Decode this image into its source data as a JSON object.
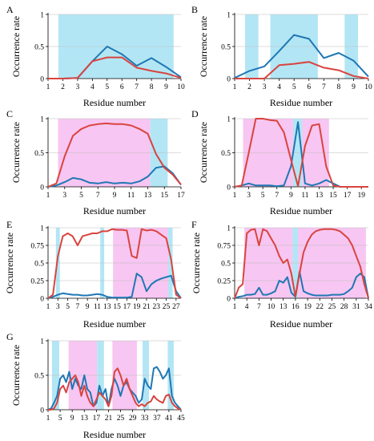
{
  "colors": {
    "cyan": "#b3e6f5",
    "magenta": "#f7c6f2",
    "blue": "#1f77b4",
    "red": "#d9443f"
  },
  "chart_data": [
    {
      "panel": "A",
      "type": "line",
      "xlabel": "Residue number",
      "ylabel": "Occurrence rate",
      "xlim": [
        1,
        10
      ],
      "ylim": [
        0,
        1
      ],
      "xticks": [
        1,
        2,
        3,
        4,
        5,
        6,
        7,
        8,
        9,
        10
      ],
      "xtick_labels": [
        "1",
        "2",
        "3",
        "4",
        "5",
        "6",
        "7",
        "8",
        "9",
        "10"
      ],
      "yticks": [
        0,
        0.5,
        1
      ],
      "ytick_labels": [
        "0",
        "0.5",
        "1"
      ],
      "regions": [
        {
          "from": 1.7,
          "to": 9.5,
          "color": "cyan"
        }
      ],
      "series": [
        {
          "color": "blue",
          "x": [
            1,
            2,
            3,
            4,
            5,
            6,
            7,
            8,
            9,
            10
          ],
          "y": [
            0,
            0,
            0.01,
            0.27,
            0.5,
            0.38,
            0.2,
            0.32,
            0.18,
            0.02
          ]
        },
        {
          "color": "red",
          "x": [
            1,
            2,
            3,
            4,
            5,
            6,
            7,
            8,
            9,
            10
          ],
          "y": [
            0,
            0,
            0.01,
            0.27,
            0.33,
            0.33,
            0.17,
            0.12,
            0.08,
            0.01
          ]
        }
      ]
    },
    {
      "panel": "B",
      "type": "line",
      "xlabel": "Residue number",
      "ylabel": "Occurrence rate",
      "xlim": [
        1,
        10
      ],
      "ylim": [
        0,
        1
      ],
      "xticks": [
        1,
        2,
        3,
        4,
        5,
        6,
        7,
        8,
        9,
        10
      ],
      "xtick_labels": [
        "1",
        "2",
        "3",
        "4",
        "5",
        "6",
        "7",
        "8",
        "9",
        "10"
      ],
      "yticks": [
        0,
        0.5,
        1
      ],
      "ytick_labels": [
        "0",
        "0.5",
        "1"
      ],
      "regions": [
        {
          "from": 1.7,
          "to": 2.6,
          "color": "cyan"
        },
        {
          "from": 3.4,
          "to": 6.6,
          "color": "cyan"
        },
        {
          "from": 8.4,
          "to": 9.3,
          "color": "cyan"
        }
      ],
      "series": [
        {
          "color": "blue",
          "x": [
            1,
            2,
            3,
            4,
            5,
            6,
            7,
            8,
            9,
            10
          ],
          "y": [
            0.01,
            0.12,
            0.19,
            0.43,
            0.68,
            0.62,
            0.32,
            0.4,
            0.28,
            0.03
          ]
        },
        {
          "color": "red",
          "x": [
            1,
            2,
            3,
            4,
            5,
            6,
            7,
            8,
            9,
            10
          ],
          "y": [
            0,
            0,
            0,
            0.21,
            0.23,
            0.26,
            0.17,
            0.13,
            0.04,
            0
          ]
        }
      ]
    },
    {
      "panel": "C",
      "type": "line",
      "xlabel": "Residue number",
      "ylabel": "Occurrence rate",
      "xlim": [
        1,
        17
      ],
      "ylim": [
        0,
        1
      ],
      "xticks": [
        1,
        3,
        5,
        7,
        9,
        11,
        13,
        15,
        17
      ],
      "xtick_labels": [
        "1",
        "3",
        "5",
        "7",
        "9",
        "11",
        "13",
        "15",
        "17"
      ],
      "yticks": [
        0,
        0.5,
        1
      ],
      "ytick_labels": [
        "0",
        "0.5",
        "1"
      ],
      "regions": [
        {
          "from": 2.2,
          "to": 13.3,
          "color": "magenta"
        },
        {
          "from": 13.3,
          "to": 15.4,
          "color": "cyan"
        }
      ],
      "series": [
        {
          "color": "blue",
          "x": [
            1,
            2,
            3,
            4,
            5,
            6,
            7,
            8,
            9,
            10,
            11,
            12,
            13,
            14,
            15,
            16,
            17
          ],
          "y": [
            0,
            0.02,
            0.07,
            0.13,
            0.11,
            0.06,
            0.05,
            0.07,
            0.05,
            0.06,
            0.05,
            0.08,
            0.15,
            0.28,
            0.3,
            0.2,
            0.03
          ]
        },
        {
          "color": "red",
          "x": [
            1,
            2,
            3,
            4,
            5,
            6,
            7,
            8,
            9,
            10,
            11,
            12,
            13,
            14,
            15,
            16,
            17
          ],
          "y": [
            0,
            0.05,
            0.45,
            0.75,
            0.85,
            0.9,
            0.92,
            0.93,
            0.92,
            0.92,
            0.9,
            0.85,
            0.78,
            0.48,
            0.28,
            0.18,
            0.03
          ]
        }
      ]
    },
    {
      "panel": "D",
      "type": "line",
      "xlabel": "Residue number",
      "ylabel": "Occurrence rate",
      "xlim": [
        1,
        20
      ],
      "ylim": [
        0,
        1
      ],
      "xticks": [
        1,
        3,
        5,
        7,
        9,
        11,
        13,
        15,
        17,
        19
      ],
      "xtick_labels": [
        "1",
        "3",
        "5",
        "7",
        "9",
        "11",
        "13",
        "15",
        "17",
        "19"
      ],
      "yticks": [
        0,
        0.5,
        1
      ],
      "ytick_labels": [
        "0",
        "0.5",
        "1"
      ],
      "regions": [
        {
          "from": 2.2,
          "to": 9.3,
          "color": "magenta"
        },
        {
          "from": 9.3,
          "to": 10.6,
          "color": "cyan"
        },
        {
          "from": 10.6,
          "to": 14.4,
          "color": "magenta"
        }
      ],
      "series": [
        {
          "color": "blue",
          "x": [
            1,
            2,
            3,
            4,
            5,
            6,
            7,
            8,
            9,
            10,
            11,
            12,
            13,
            14,
            15,
            16,
            17,
            18,
            19,
            20
          ],
          "y": [
            0,
            0.02,
            0.05,
            0.02,
            0.02,
            0.02,
            0.01,
            0.02,
            0.3,
            0.95,
            0.05,
            0.02,
            0.05,
            0.1,
            0.05,
            0,
            0,
            0,
            0,
            0
          ]
        },
        {
          "color": "red",
          "x": [
            1,
            2,
            3,
            4,
            5,
            6,
            7,
            8,
            9,
            10,
            11,
            12,
            13,
            14,
            15,
            16,
            17,
            18,
            19,
            20
          ],
          "y": [
            0,
            0.02,
            0.5,
            1,
            1,
            0.98,
            0.97,
            0.8,
            0.4,
            0.01,
            0.6,
            0.9,
            0.92,
            0.3,
            0.02,
            0,
            0,
            0,
            0,
            0
          ]
        }
      ]
    },
    {
      "panel": "E",
      "type": "line",
      "xlabel": "Residue number",
      "ylabel": "Occurrence rate",
      "xlim": [
        1,
        28
      ],
      "ylim": [
        0,
        1
      ],
      "xticks": [
        1,
        3,
        5,
        7,
        9,
        11,
        13,
        15,
        17,
        19,
        21,
        23,
        25,
        27
      ],
      "xtick_labels": [
        "1",
        "3",
        "5",
        "7",
        "9",
        "11",
        "13",
        "15",
        "17",
        "19",
        "21",
        "23",
        "25",
        "27"
      ],
      "yticks": [
        0,
        0.25,
        0.5,
        0.75,
        1
      ],
      "ytick_labels": [
        "0",
        "0.25",
        "0.5",
        "0.75",
        "1"
      ],
      "regions": [
        {
          "from": 2.6,
          "to": 3.4,
          "color": "cyan"
        },
        {
          "from": 11.6,
          "to": 12.4,
          "color": "cyan"
        },
        {
          "from": 14.2,
          "to": 25.4,
          "color": "magenta"
        },
        {
          "from": 25.4,
          "to": 26.3,
          "color": "cyan"
        }
      ],
      "series": [
        {
          "color": "blue",
          "x": [
            1,
            2,
            3,
            4,
            5,
            6,
            7,
            8,
            9,
            10,
            11,
            12,
            13,
            14,
            15,
            16,
            17,
            18,
            19,
            20,
            21,
            22,
            23,
            24,
            25,
            26,
            27,
            28
          ],
          "y": [
            0,
            0.02,
            0.05,
            0.07,
            0.06,
            0.05,
            0.05,
            0.04,
            0.04,
            0.05,
            0.06,
            0.05,
            0.02,
            0.01,
            0.01,
            0.01,
            0.01,
            0.02,
            0.35,
            0.3,
            0.1,
            0.2,
            0.25,
            0.28,
            0.3,
            0.32,
            0.1,
            0
          ]
        },
        {
          "color": "red",
          "x": [
            1,
            2,
            3,
            4,
            5,
            6,
            7,
            8,
            9,
            10,
            11,
            12,
            13,
            14,
            15,
            16,
            17,
            18,
            19,
            20,
            21,
            22,
            23,
            24,
            25,
            26,
            27,
            28
          ],
          "y": [
            0,
            0.05,
            0.6,
            0.88,
            0.92,
            0.88,
            0.75,
            0.88,
            0.9,
            0.92,
            0.92,
            0.95,
            0.95,
            0.98,
            0.97,
            0.97,
            0.96,
            0.6,
            0.57,
            0.98,
            0.96,
            0.97,
            0.95,
            0.9,
            0.85,
            0.55,
            0.05,
            0
          ]
        }
      ]
    },
    {
      "panel": "F",
      "type": "line",
      "xlabel": "Residue number",
      "ylabel": "Occurrence rate",
      "xlim": [
        1,
        34
      ],
      "ylim": [
        0,
        1
      ],
      "xticks": [
        1,
        4,
        7,
        10,
        13,
        16,
        19,
        22,
        25,
        28,
        31,
        34
      ],
      "xtick_labels": [
        "1",
        "4",
        "7",
        "10",
        "13",
        "16",
        "19",
        "22",
        "25",
        "28",
        "31",
        "34"
      ],
      "yticks": [
        0,
        0.25,
        0.5,
        0.75,
        1
      ],
      "ytick_labels": [
        "0",
        "0.25",
        "0.5",
        "0.75",
        "1"
      ],
      "regions": [
        {
          "from": 3.4,
          "to": 15.3,
          "color": "magenta"
        },
        {
          "from": 15.3,
          "to": 16.6,
          "color": "cyan"
        },
        {
          "from": 16.6,
          "to": 33.4,
          "color": "magenta"
        }
      ],
      "series": [
        {
          "color": "blue",
          "x": [
            1,
            2,
            3,
            4,
            5,
            6,
            7,
            8,
            9,
            10,
            11,
            12,
            13,
            14,
            15,
            16,
            17,
            18,
            19,
            20,
            21,
            22,
            23,
            24,
            25,
            26,
            27,
            28,
            29,
            30,
            31,
            32,
            33,
            34
          ],
          "y": [
            0,
            0.02,
            0.03,
            0.05,
            0.05,
            0.06,
            0.15,
            0.05,
            0.05,
            0.07,
            0.1,
            0.25,
            0.22,
            0.3,
            0.08,
            0.02,
            0.38,
            0.1,
            0.07,
            0.05,
            0.04,
            0.04,
            0.04,
            0.04,
            0.05,
            0.05,
            0.05,
            0.06,
            0.1,
            0.15,
            0.3,
            0.35,
            0.3,
            0
          ]
        },
        {
          "color": "red",
          "x": [
            1,
            2,
            3,
            4,
            5,
            6,
            7,
            8,
            9,
            10,
            11,
            12,
            13,
            14,
            15,
            16,
            17,
            18,
            19,
            20,
            21,
            22,
            23,
            24,
            25,
            26,
            27,
            28,
            29,
            30,
            31,
            32,
            33,
            34
          ],
          "y": [
            0,
            0.15,
            0.2,
            0.92,
            0.97,
            0.98,
            0.75,
            0.98,
            0.95,
            0.85,
            0.75,
            0.6,
            0.5,
            0.55,
            0.35,
            0.02,
            0.35,
            0.65,
            0.8,
            0.9,
            0.95,
            0.97,
            0.98,
            0.98,
            0.98,
            0.97,
            0.95,
            0.9,
            0.85,
            0.75,
            0.6,
            0.45,
            0.2,
            0
          ]
        }
      ]
    },
    {
      "panel": "G",
      "type": "line",
      "xlabel": "Residue number",
      "ylabel": "Occurrence rate",
      "xlim": [
        1,
        45
      ],
      "ylim": [
        0,
        1
      ],
      "xticks": [
        1,
        5,
        9,
        13,
        17,
        21,
        25,
        29,
        33,
        37,
        41,
        45
      ],
      "xtick_labels": [
        "1",
        "5",
        "9",
        "13",
        "17",
        "21",
        "25",
        "29",
        "33",
        "37",
        "41",
        "45"
      ],
      "yticks": [
        0,
        0.5,
        1
      ],
      "ytick_labels": [
        "0",
        "0.5",
        "1"
      ],
      "regions": [
        {
          "from": 2.3,
          "to": 4.7,
          "color": "cyan"
        },
        {
          "from": 7.8,
          "to": 17.2,
          "color": "magenta"
        },
        {
          "from": 17.2,
          "to": 19.5,
          "color": "cyan"
        },
        {
          "from": 22.3,
          "to": 30.4,
          "color": "magenta"
        },
        {
          "from": 32.3,
          "to": 34.4,
          "color": "cyan"
        },
        {
          "from": 40.6,
          "to": 42.6,
          "color": "cyan"
        }
      ],
      "series": [
        {
          "color": "blue",
          "x": [
            1,
            2,
            3,
            4,
            5,
            6,
            7,
            8,
            9,
            10,
            11,
            12,
            13,
            14,
            15,
            16,
            17,
            18,
            19,
            20,
            21,
            22,
            23,
            24,
            25,
            26,
            27,
            28,
            29,
            30,
            31,
            32,
            33,
            34,
            35,
            36,
            37,
            38,
            39,
            40,
            41,
            42,
            43,
            44,
            45
          ],
          "y": [
            0,
            0.02,
            0.1,
            0.2,
            0.45,
            0.5,
            0.4,
            0.55,
            0.3,
            0.45,
            0.35,
            0.3,
            0.5,
            0.3,
            0.25,
            0.05,
            0.1,
            0.35,
            0.2,
            0.3,
            0.05,
            0.3,
            0.45,
            0.35,
            0.2,
            0.35,
            0.4,
            0.3,
            0.25,
            0.2,
            0.1,
            0.15,
            0.45,
            0.35,
            0.3,
            0.6,
            0.62,
            0.55,
            0.45,
            0.5,
            0.6,
            0.2,
            0.1,
            0.05,
            0
          ]
        },
        {
          "color": "red",
          "x": [
            1,
            2,
            3,
            4,
            5,
            6,
            7,
            8,
            9,
            10,
            11,
            12,
            13,
            14,
            15,
            16,
            17,
            18,
            19,
            20,
            21,
            22,
            23,
            24,
            25,
            26,
            27,
            28,
            29,
            30,
            31,
            32,
            33,
            34,
            35,
            36,
            37,
            38,
            39,
            40,
            41,
            42,
            43,
            44,
            45
          ],
          "y": [
            0,
            0,
            0.02,
            0.1,
            0.3,
            0.35,
            0.25,
            0.4,
            0.45,
            0.5,
            0.4,
            0.2,
            0.35,
            0.2,
            0.1,
            0.05,
            0.15,
            0.25,
            0.2,
            0.15,
            0.05,
            0.2,
            0.55,
            0.6,
            0.5,
            0.35,
            0.45,
            0.3,
            0.2,
            0.1,
            0.05,
            0.08,
            0.05,
            0.1,
            0.12,
            0.2,
            0.15,
            0.12,
            0.1,
            0.2,
            0.22,
            0.1,
            0.05,
            0.02,
            0
          ]
        }
      ]
    }
  ]
}
